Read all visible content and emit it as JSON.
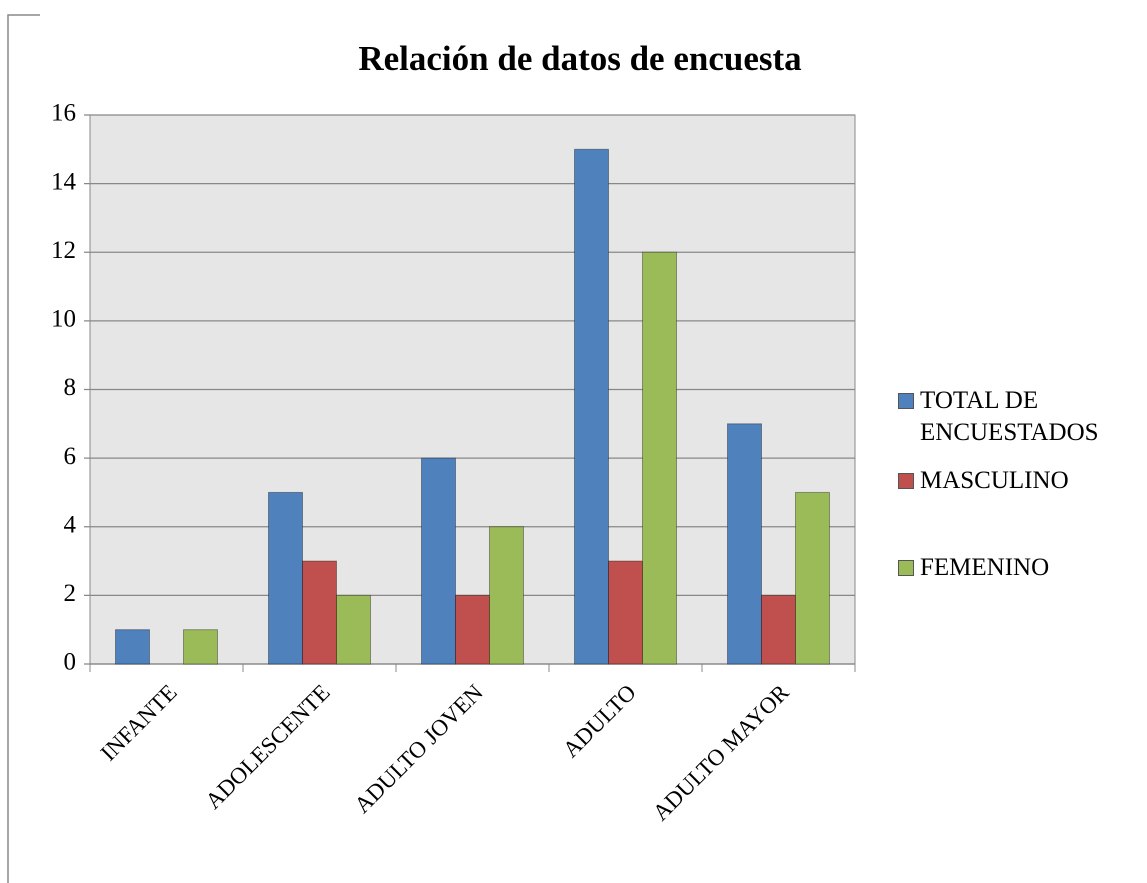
{
  "chart_data": {
    "type": "bar",
    "title": "Relación de datos de encuesta",
    "categories": [
      "INFANTE",
      "ADOLESCENTE",
      "ADULTO JOVEN",
      "ADULTO",
      "ADULTO MAYOR"
    ],
    "series": [
      {
        "name": "TOTAL DE ENCUESTADOS",
        "color": "#4f81bd",
        "values": [
          1,
          5,
          6,
          15,
          7
        ]
      },
      {
        "name": "MASCULINO",
        "color": "#c0504d",
        "values": [
          0,
          3,
          2,
          3,
          2
        ]
      },
      {
        "name": "FEMENINO",
        "color": "#9bbb59",
        "values": [
          1,
          2,
          4,
          12,
          5
        ]
      }
    ],
    "ylim": [
      0,
      16
    ],
    "yticks": [
      0,
      2,
      4,
      6,
      8,
      10,
      12,
      14,
      16
    ],
    "grid": true,
    "legend": "right"
  }
}
